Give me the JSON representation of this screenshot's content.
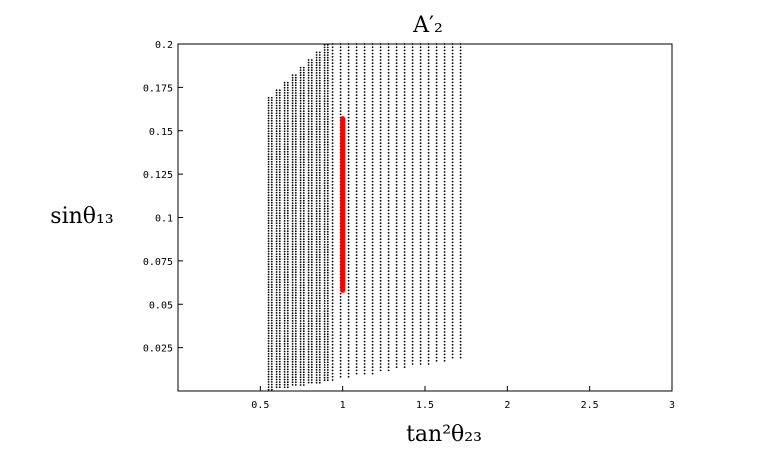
{
  "chart_data": {
    "type": "scatter",
    "title": "A′₂",
    "xlabel": "tan²θ₂₃",
    "ylabel": "sinθ₁₃",
    "xlim": [
      0,
      3
    ],
    "ylim": [
      0,
      0.2
    ],
    "x_ticks": [
      0.5,
      1,
      1.5,
      2,
      2.5,
      3
    ],
    "x_tick_labels": [
      "0.5",
      "1",
      "1.5",
      "2",
      "2.5",
      "3"
    ],
    "y_ticks": [
      0.025,
      0.05,
      0.075,
      0.1,
      0.125,
      0.15,
      0.175,
      0.2
    ],
    "y_tick_labels": [
      "0.025",
      "0.05",
      "0.075",
      "0.1",
      "0.125",
      "0.15",
      "0.175",
      "0.2"
    ],
    "grid": false,
    "series": [
      {
        "color": "#000000",
        "marker": "dot",
        "region": {
          "x_range": [
            0.55,
            1.76
          ],
          "y_min_left": 0.0,
          "y_min_right": 0.019,
          "y_max_left": 0.169,
          "y_max_right": 0.2
        }
      },
      {
        "color": "#ff0000",
        "marker": "line",
        "x": [
          1,
          1
        ],
        "y": [
          0.058,
          0.157
        ]
      }
    ]
  }
}
